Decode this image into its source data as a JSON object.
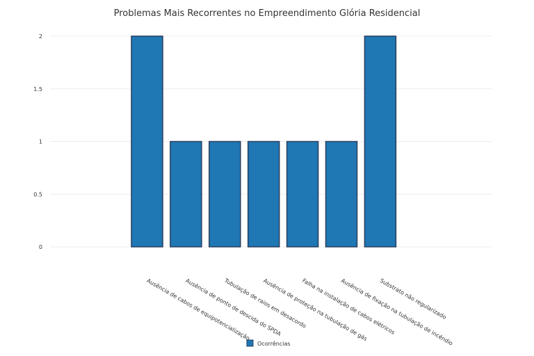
{
  "chart_data": {
    "type": "bar",
    "title": "Problemas Mais Recorrentes no Empreendimento Glória Residencial",
    "categories": [
      "Ausência de cabos de equipotencialização",
      "Ausência de ponto de descida do SPDA",
      "Tubulação de raios em desacordo",
      "Ausência de proteção na tubulação de gás",
      "Falha na instalação de cabos elétricos",
      "Ausência de fixação na tubulação de incêndio",
      "Substrato não regularizado"
    ],
    "series": [
      {
        "name": "Ocorrências",
        "values": [
          2,
          1,
          1,
          1,
          1,
          1,
          2
        ],
        "color": "#1f77b4"
      }
    ],
    "ylim": [
      0,
      2
    ],
    "yticks": [
      0,
      0.5,
      1,
      1.5,
      2
    ],
    "ytick_labels": [
      "0",
      "0.5",
      "1",
      "1.5",
      "2"
    ],
    "xlabel": "",
    "ylabel": "",
    "grid": true,
    "legend_position": "bottom-center"
  }
}
